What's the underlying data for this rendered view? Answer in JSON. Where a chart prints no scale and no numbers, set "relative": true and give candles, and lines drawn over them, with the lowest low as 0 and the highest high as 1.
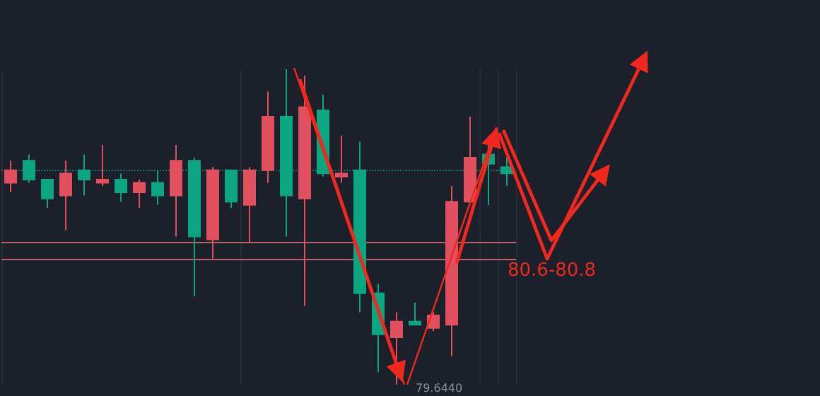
{
  "chart_data": {
    "type": "candlestick",
    "relative": true,
    "categories": [
      null,
      null,
      null,
      null,
      null,
      null,
      null,
      null,
      null,
      null,
      null,
      null,
      null,
      null,
      null,
      null,
      null,
      null,
      null,
      null,
      null,
      null,
      null,
      null,
      null,
      null,
      null,
      null
    ],
    "ohlc": [
      [
        0.64,
        0.71,
        0.61,
        0.68
      ],
      [
        0.71,
        0.73,
        0.64,
        0.65
      ],
      [
        0.65,
        0.65,
        0.56,
        0.59
      ],
      [
        0.6,
        0.71,
        0.49,
        0.67
      ],
      [
        0.68,
        0.73,
        0.6,
        0.65
      ],
      [
        0.64,
        0.76,
        0.63,
        0.65
      ],
      [
        0.65,
        0.67,
        0.58,
        0.61
      ],
      [
        0.61,
        0.65,
        0.56,
        0.64
      ],
      [
        0.64,
        0.68,
        0.57,
        0.6
      ],
      [
        0.6,
        0.76,
        0.47,
        0.71
      ],
      [
        0.71,
        0.72,
        0.28,
        0.47
      ],
      [
        0.46,
        0.69,
        0.4,
        0.68
      ],
      [
        0.68,
        0.68,
        0.56,
        0.58
      ],
      [
        0.57,
        0.69,
        0.45,
        0.68
      ],
      [
        0.68,
        0.93,
        0.64,
        0.85
      ],
      [
        0.85,
        1,
        0.47,
        0.6
      ],
      [
        0.59,
        0.98,
        0.25,
        0.88
      ],
      [
        0.87,
        0.92,
        0.66,
        0.67
      ],
      [
        0.66,
        0.79,
        0.64,
        0.67
      ],
      [
        0.68,
        0.77,
        0.23,
        0.29
      ],
      [
        0.29,
        0.32,
        0.04,
        0.16
      ],
      [
        0.15,
        0.23,
        0,
        0.2
      ],
      [
        0.2,
        0.26,
        0.19,
        0.19
      ],
      [
        0.18,
        0.23,
        0.17,
        0.22
      ],
      [
        0.19,
        0.63,
        0.09,
        0.58
      ],
      [
        0.58,
        0.85,
        0.58,
        0.72
      ],
      [
        0.73,
        0.77,
        0.57,
        0.7
      ],
      [
        0.69,
        0.72,
        0.63,
        0.67
      ]
    ],
    "colors": [
      "#e0505e",
      "#0ca582",
      "#0ca582",
      "#e0505e",
      "#0ca582",
      "#e0505e",
      "#0ca582",
      "#e0505e",
      "#0ca582",
      "#e0505e",
      "#0ca582",
      "#e0505e",
      "#0ca582",
      "#e0505e",
      "#e0505e",
      "#0ca582",
      "#e0505e",
      "#0ca582",
      "#e0505e",
      "#0ca582",
      "#0ca582",
      "#e0505e",
      "#0ca582",
      "#e0505e",
      "#e0505e",
      "#e0505e",
      "#0ca582",
      "#0ca582"
    ],
    "ref_lines": [
      {
        "axis": "y",
        "value": 0.45,
        "color": "#b8646c",
        "line_style": "solid"
      },
      {
        "axis": "y",
        "value": 0.4,
        "color": "#b8646c",
        "line_style": "solid"
      },
      {
        "axis": "y",
        "value": 0.68,
        "color": "#1f6f66",
        "line_style": "dotted"
      }
    ],
    "annotations": [
      "80.6-80.8",
      "79.6440"
    ],
    "grid": "x"
  }
}
